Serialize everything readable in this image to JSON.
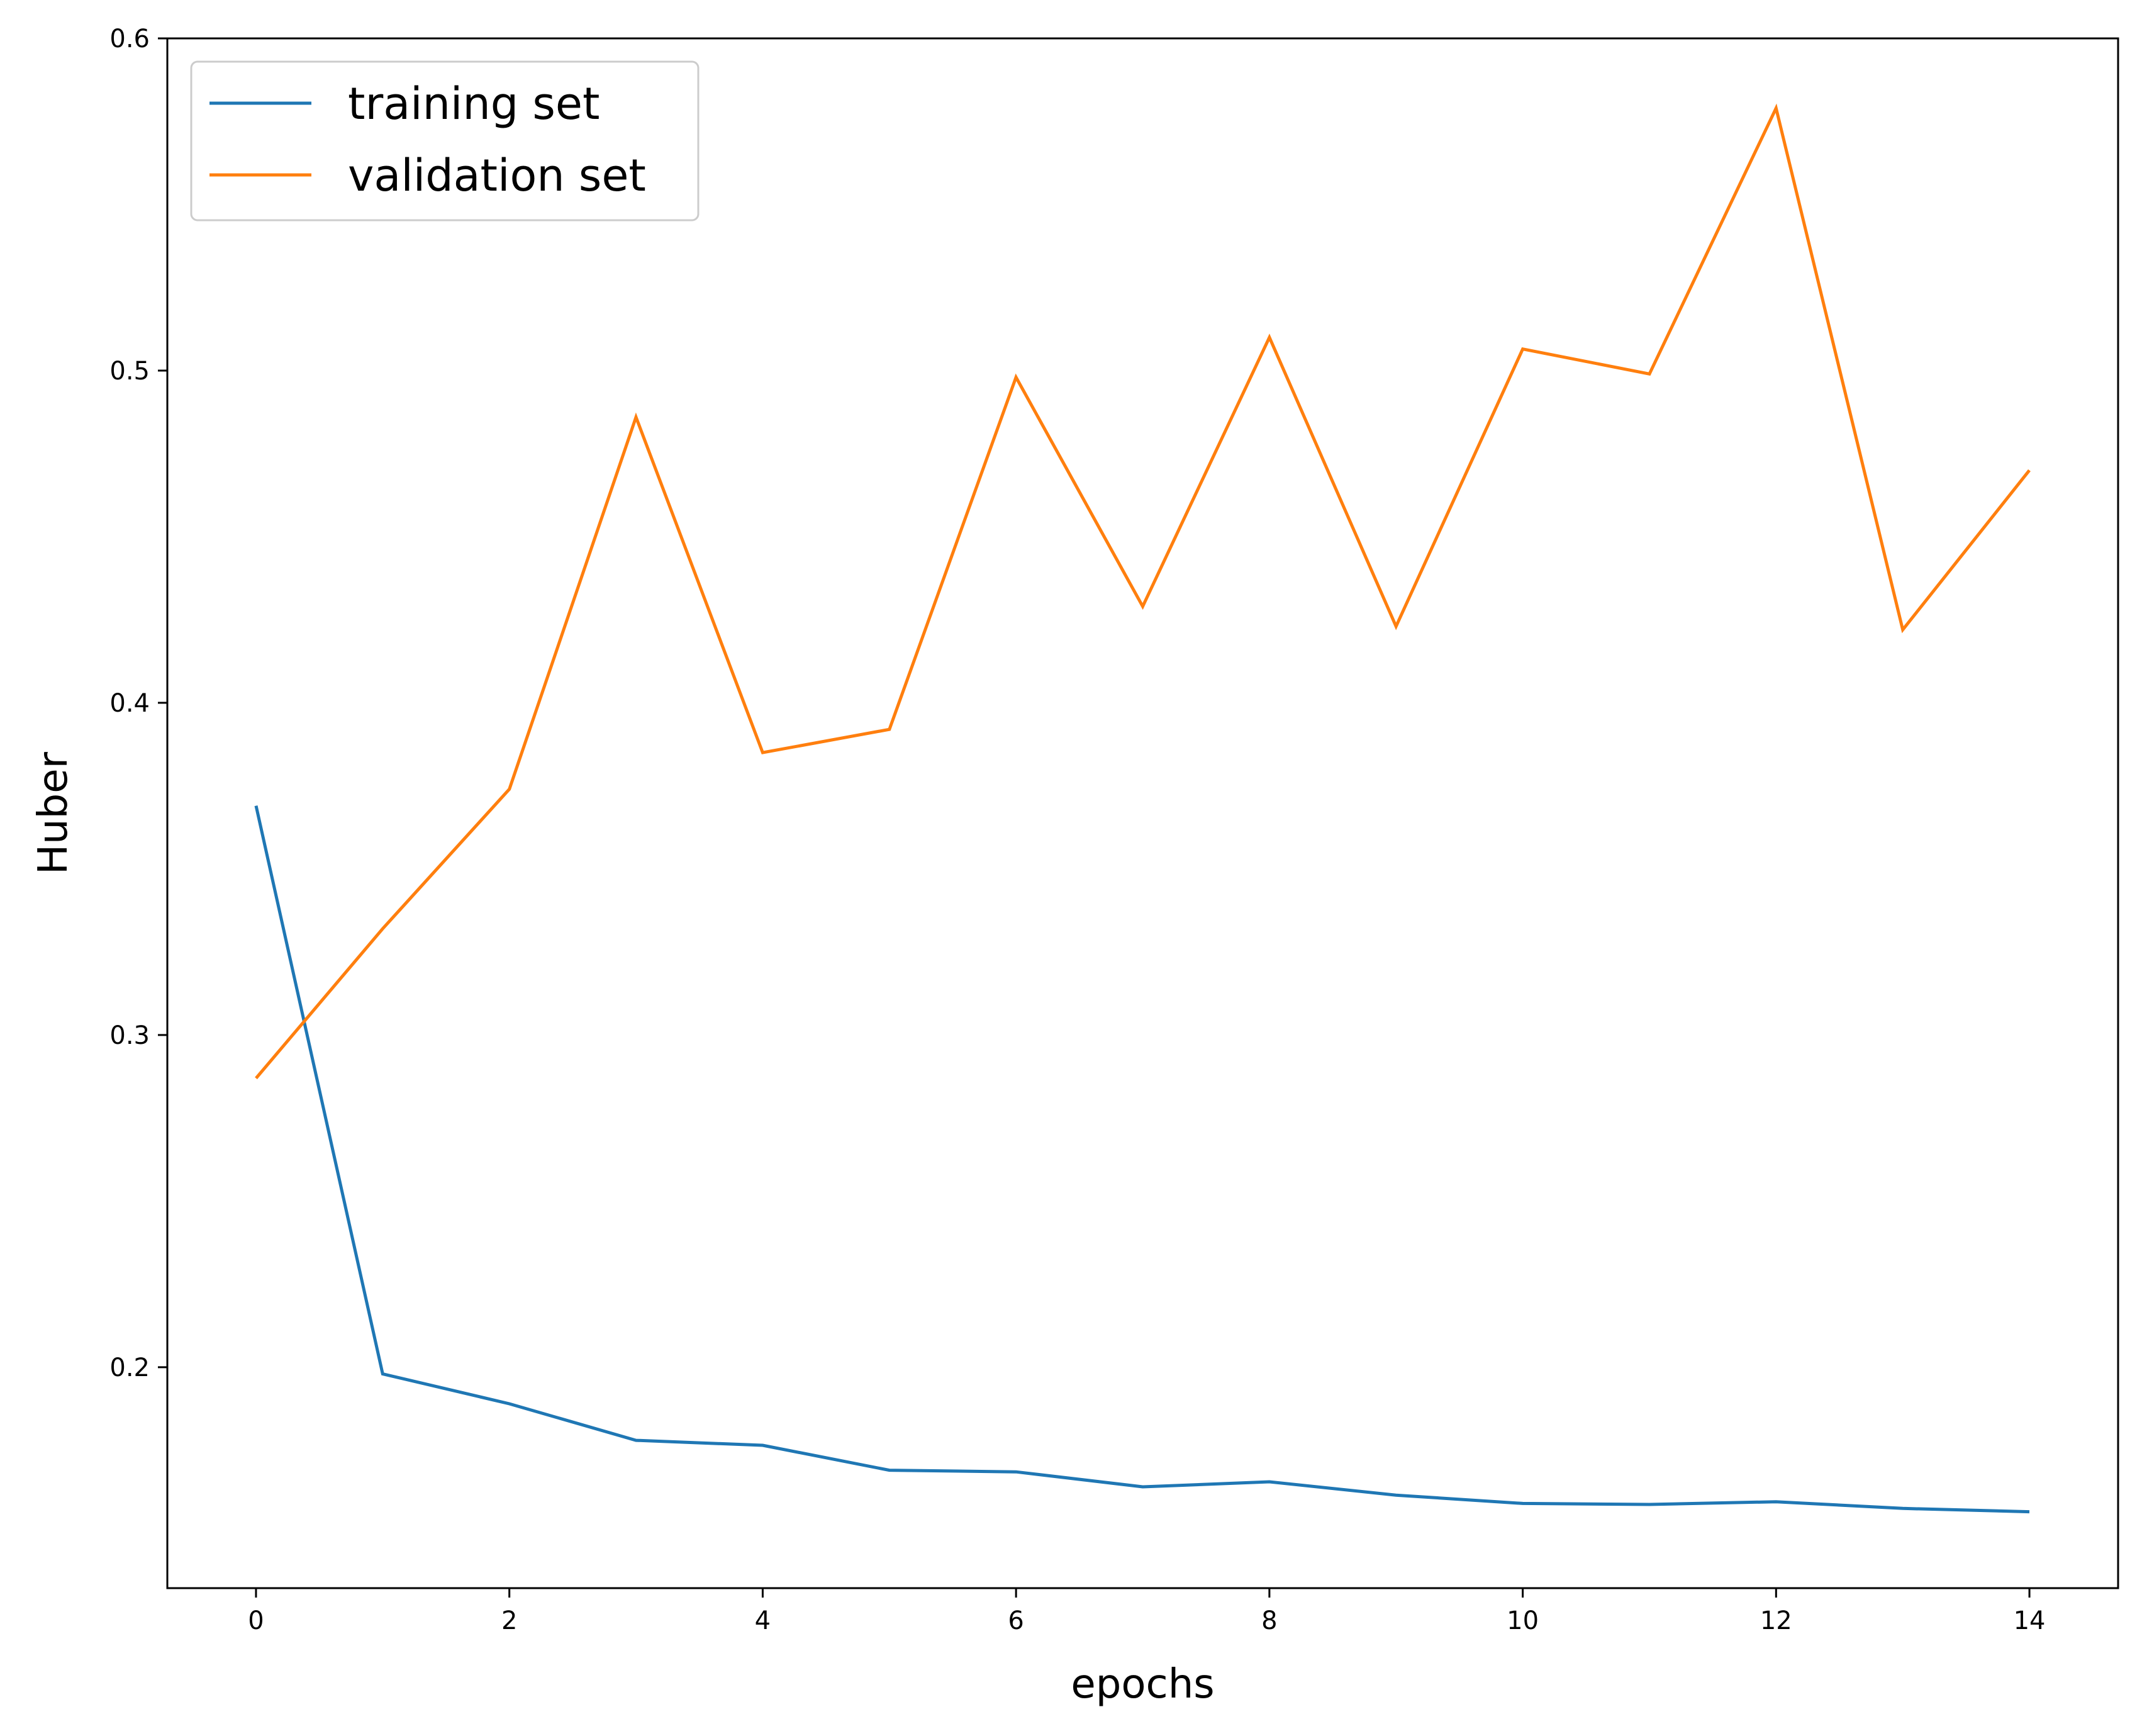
{
  "chart_data": {
    "type": "line",
    "xlabel": "epochs",
    "ylabel": "Huber",
    "xlim": [
      -0.7,
      14.7
    ],
    "ylim": [
      0.1335,
      0.6
    ],
    "x": [
      0,
      1,
      2,
      3,
      4,
      5,
      6,
      7,
      8,
      9,
      10,
      11,
      12,
      13,
      14
    ],
    "x_ticks": [
      0,
      2,
      4,
      6,
      8,
      10,
      12,
      14
    ],
    "x_tick_labels": [
      "0",
      "2",
      "4",
      "6",
      "8",
      "10",
      "12",
      "14"
    ],
    "y_ticks": [
      0.2,
      0.3,
      0.4,
      0.5,
      0.6
    ],
    "y_tick_labels": [
      "0.2",
      "0.3",
      "0.4",
      "0.5",
      "0.6"
    ],
    "grid": false,
    "legend_position": "upper-left",
    "series": [
      {
        "name": "training set",
        "color": "#1f77b4",
        "values": [
          0.369,
          0.198,
          0.189,
          0.178,
          0.1765,
          0.169,
          0.1685,
          0.164,
          0.1655,
          0.1615,
          0.159,
          0.1587,
          0.1595,
          0.1575,
          0.1565
        ]
      },
      {
        "name": "validation set",
        "color": "#ff7f0e",
        "values": [
          0.287,
          0.332,
          0.374,
          0.486,
          0.385,
          0.392,
          0.498,
          0.429,
          0.51,
          0.423,
          0.5065,
          0.499,
          0.579,
          0.422,
          0.47
        ]
      }
    ]
  }
}
